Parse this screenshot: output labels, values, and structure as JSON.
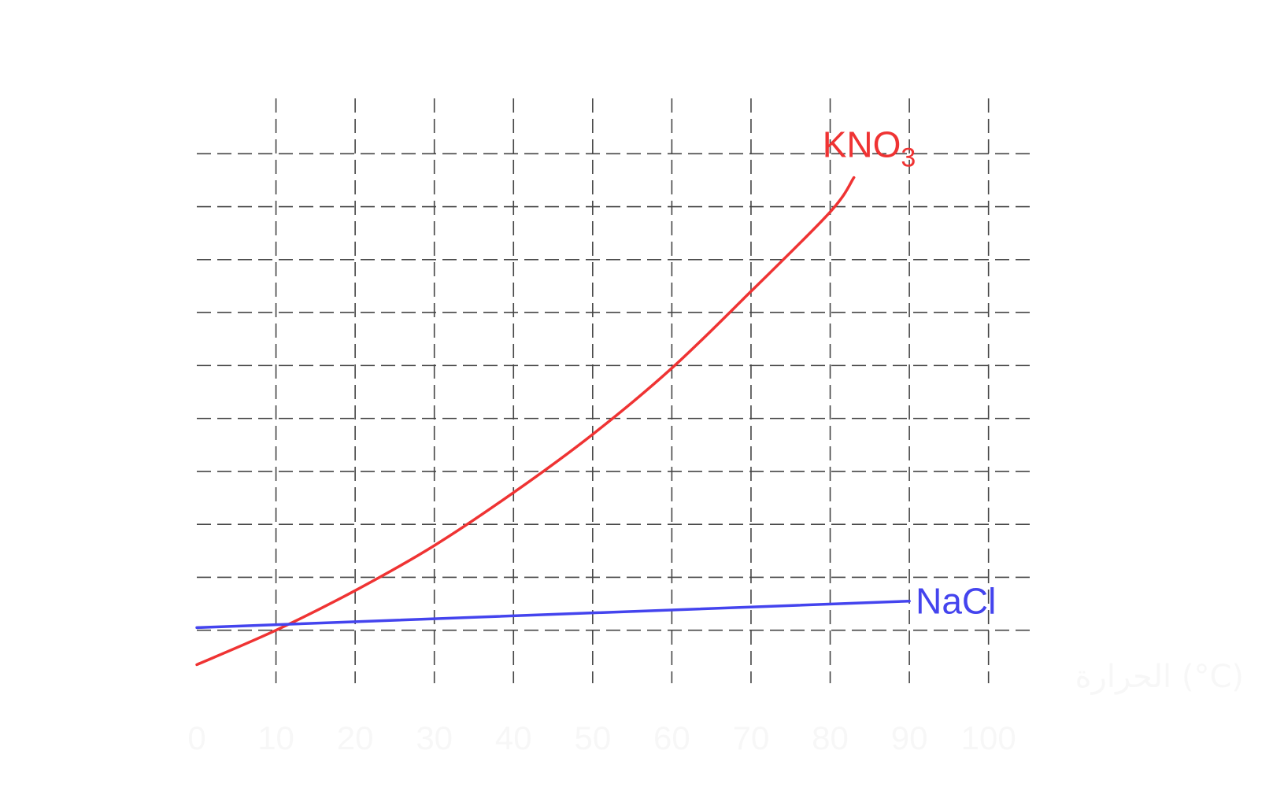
{
  "chart_data": {
    "type": "line",
    "xlabel": "الحرارة (°C)",
    "x_ticks": [
      "0",
      "10",
      "20",
      "30",
      "40",
      "50",
      "60",
      "70",
      "80",
      "90",
      "100"
    ],
    "xlim": [
      0,
      106
    ],
    "ylim": [
      0,
      11
    ],
    "grid": true,
    "series": [
      {
        "name": "KNO3",
        "label_main": "KNO",
        "label_sub": "3",
        "color": "#ef3333",
        "x": [
          0,
          10,
          20,
          30,
          40,
          50,
          60,
          70,
          80,
          83
        ],
        "y": [
          0.35,
          1.0,
          1.75,
          2.6,
          3.6,
          4.7,
          5.95,
          7.4,
          8.9,
          9.55
        ]
      },
      {
        "name": "NaCl",
        "color": "#4444ee",
        "x": [
          0,
          90
        ],
        "y": [
          1.05,
          1.55
        ]
      }
    ]
  }
}
